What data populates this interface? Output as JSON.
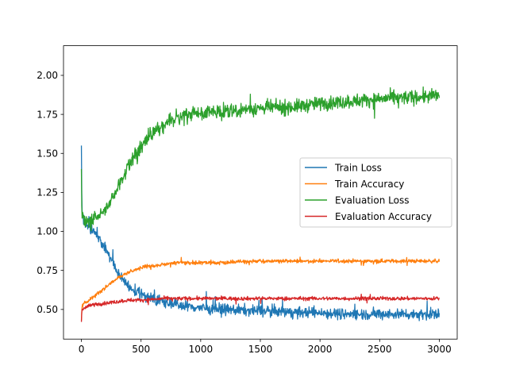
{
  "chart_data": {
    "type": "line",
    "title": "",
    "xlabel": "",
    "ylabel": "",
    "xlim": [
      -150,
      3150
    ],
    "ylim": [
      0.31,
      2.19
    ],
    "xticks": [
      0,
      500,
      1000,
      1500,
      2000,
      2500,
      3000
    ],
    "xtick_labels": [
      "0",
      "500",
      "1000",
      "1500",
      "2000",
      "2500",
      "3000"
    ],
    "yticks": [
      0.5,
      0.75,
      1.0,
      1.25,
      1.5,
      1.75,
      2.0
    ],
    "ytick_labels": [
      "0.50",
      "0.75",
      "1.00",
      "1.25",
      "1.50",
      "1.75",
      "2.00"
    ],
    "grid": false,
    "legend_position": "center-right",
    "series": [
      {
        "name": "Train Loss",
        "color": "#1f77b4",
        "noise": 0.035,
        "x": [
          0,
          2,
          5,
          10,
          20,
          50,
          100,
          150,
          200,
          250,
          300,
          350,
          400,
          500,
          600,
          700,
          800,
          900,
          1000,
          1200,
          1500,
          1800,
          2000,
          2200,
          2500,
          2800,
          3000
        ],
        "y": [
          1.55,
          1.3,
          1.15,
          1.1,
          1.07,
          1.04,
          1.0,
          0.95,
          0.89,
          0.82,
          0.74,
          0.68,
          0.64,
          0.6,
          0.57,
          0.55,
          0.53,
          0.52,
          0.51,
          0.5,
          0.49,
          0.48,
          0.48,
          0.47,
          0.47,
          0.47,
          0.47
        ]
      },
      {
        "name": "Train Accuracy",
        "color": "#ff7f0e",
        "noise": 0.012,
        "x": [
          0,
          5,
          20,
          50,
          100,
          200,
          300,
          400,
          500,
          600,
          700,
          800,
          900,
          1000,
          1200,
          1500,
          2000,
          2500,
          3000
        ],
        "y": [
          0.43,
          0.52,
          0.54,
          0.55,
          0.58,
          0.64,
          0.7,
          0.74,
          0.77,
          0.78,
          0.79,
          0.8,
          0.8,
          0.8,
          0.8,
          0.81,
          0.81,
          0.81,
          0.81
        ]
      },
      {
        "name": "Evaluation Loss",
        "color": "#2ca02c",
        "noise": 0.045,
        "x": [
          0,
          2,
          5,
          10,
          20,
          50,
          100,
          150,
          200,
          250,
          300,
          350,
          400,
          500,
          600,
          700,
          800,
          900,
          1000,
          1200,
          1500,
          1800,
          2000,
          2200,
          2500,
          2800,
          3000
        ],
        "y": [
          1.4,
          1.2,
          1.12,
          1.1,
          1.07,
          1.06,
          1.07,
          1.1,
          1.14,
          1.2,
          1.27,
          1.35,
          1.43,
          1.55,
          1.64,
          1.69,
          1.72,
          1.75,
          1.76,
          1.77,
          1.79,
          1.8,
          1.82,
          1.83,
          1.85,
          1.86,
          1.87
        ]
      },
      {
        "name": "Evaluation Accuracy",
        "color": "#d62728",
        "noise": 0.012,
        "x": [
          0,
          5,
          20,
          50,
          100,
          200,
          300,
          400,
          500,
          700,
          1000,
          1500,
          2000,
          2500,
          3000
        ],
        "y": [
          0.42,
          0.5,
          0.51,
          0.52,
          0.53,
          0.54,
          0.55,
          0.56,
          0.56,
          0.57,
          0.57,
          0.57,
          0.57,
          0.57,
          0.57
        ]
      }
    ]
  }
}
